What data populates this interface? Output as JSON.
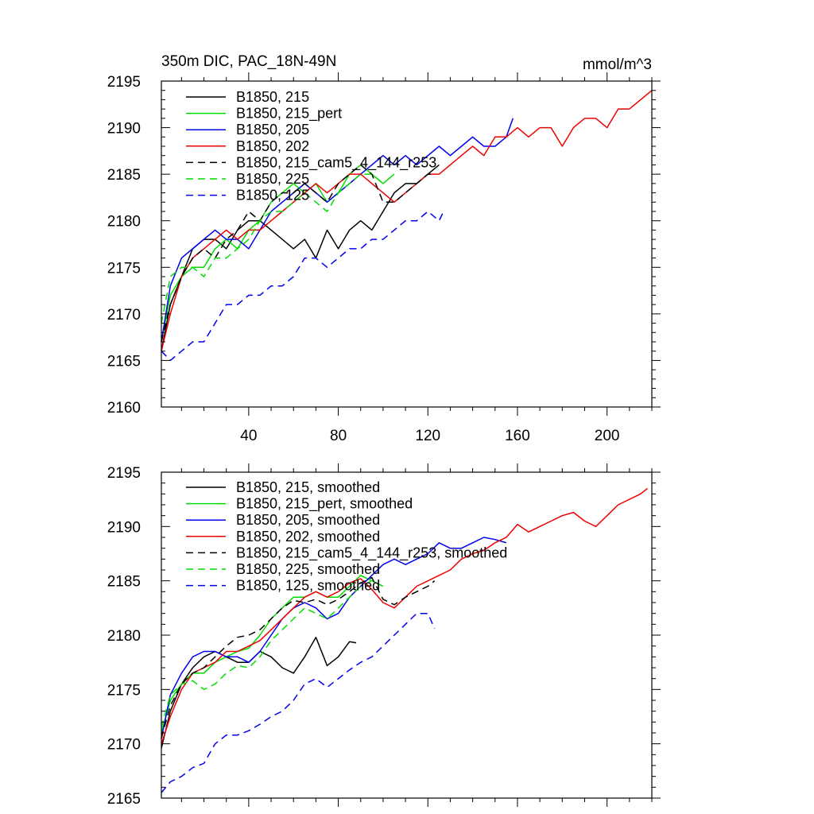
{
  "chart_data": [
    {
      "type": "line",
      "title": "350m DIC, PAC_18N-49N",
      "units": "mmol/m^3",
      "xlim": [
        1,
        220
      ],
      "ylim": [
        2160,
        2195
      ],
      "xticks": [
        40,
        80,
        120,
        160,
        200
      ],
      "xtick_labels": [
        "40",
        "80",
        "120",
        "160",
        "200"
      ],
      "yticks": [
        2160,
        2165,
        2170,
        2175,
        2180,
        2185,
        2190,
        2195
      ],
      "ytick_labels": [
        "2160",
        "2165",
        "2170",
        "2175",
        "2180",
        "2185",
        "2190",
        "2195"
      ],
      "legend_position": "top-left",
      "series": [
        {
          "name": "B1850, 215",
          "color": "#000000",
          "dash": "solid",
          "x": [
            1,
            5,
            10,
            15,
            20,
            25,
            30,
            35,
            40,
            45,
            50,
            55,
            60,
            65,
            70,
            75,
            80,
            85,
            90,
            95,
            100,
            105,
            110,
            115,
            120,
            125
          ],
          "y": [
            2166,
            2171,
            2174,
            2177,
            2178,
            2178,
            2177,
            2179,
            2180,
            2180,
            2179,
            2178,
            2177,
            2178,
            2176,
            2179,
            2177,
            2179,
            2180,
            2179,
            2181,
            2183,
            2184,
            2184,
            2185,
            2186
          ]
        },
        {
          "name": "B1850, 215_pert",
          "color": "#00dd00",
          "dash": "solid",
          "x": [
            1,
            5,
            10,
            15,
            20,
            25,
            30,
            35,
            40,
            45,
            50,
            55,
            60,
            65,
            70,
            75,
            80,
            85,
            90,
            95,
            100,
            105
          ],
          "y": [
            2167,
            2172,
            2174,
            2175,
            2175,
            2177,
            2178,
            2177,
            2179,
            2180,
            2182,
            2183,
            2184,
            2183,
            2184,
            2182,
            2183,
            2185,
            2186,
            2185,
            2184,
            2185
          ]
        },
        {
          "name": "B1850, 205",
          "color": "#0000ee",
          "dash": "solid",
          "x": [
            1,
            5,
            10,
            15,
            20,
            25,
            30,
            35,
            40,
            45,
            50,
            55,
            60,
            65,
            70,
            75,
            80,
            85,
            90,
            95,
            100,
            105,
            110,
            115,
            120,
            125,
            130,
            135,
            140,
            145,
            150,
            155,
            158
          ],
          "y": [
            2167,
            2173,
            2176,
            2177,
            2178,
            2179,
            2178,
            2178,
            2177,
            2179,
            2181,
            2182,
            2183,
            2184,
            2183,
            2182,
            2183,
            2184,
            2185,
            2186,
            2187,
            2186,
            2187,
            2186,
            2187,
            2188,
            2187,
            2188,
            2189,
            2188,
            2188,
            2189,
            2191
          ]
        },
        {
          "name": "B1850, 202",
          "color": "#ee0000",
          "dash": "solid",
          "x": [
            1,
            5,
            10,
            15,
            20,
            25,
            30,
            35,
            40,
            45,
            50,
            55,
            60,
            65,
            70,
            75,
            80,
            85,
            90,
            95,
            100,
            105,
            110,
            115,
            120,
            125,
            130,
            135,
            140,
            145,
            150,
            155,
            160,
            165,
            170,
            175,
            180,
            185,
            190,
            195,
            200,
            205,
            210,
            215,
            220
          ],
          "y": [
            2166,
            2170,
            2174,
            2176,
            2177,
            2178,
            2179,
            2178,
            2179,
            2179,
            2180,
            2181,
            2182,
            2183,
            2184,
            2183,
            2184,
            2185,
            2185,
            2184,
            2183,
            2182,
            2183,
            2184,
            2185,
            2185,
            2186,
            2187,
            2188,
            2187,
            2189,
            2189,
            2190,
            2189,
            2190,
            2190,
            2188,
            2190,
            2191,
            2191,
            2190,
            2192,
            2192,
            2193,
            2194
          ]
        },
        {
          "name": "B1850, 215_cam5_4_144_r253",
          "color": "#000000",
          "dash": "dashed",
          "x": [
            1,
            5,
            10,
            15,
            20,
            25,
            30,
            35,
            40,
            45,
            50,
            55,
            60,
            65,
            70,
            75,
            80,
            85,
            90,
            95,
            100,
            105,
            110,
            115,
            120,
            122
          ],
          "y": [
            2167,
            2171,
            2174,
            2176,
            2177,
            2176,
            2178,
            2179,
            2181,
            2180,
            2182,
            2183,
            2183,
            2184,
            2183,
            2182,
            2184,
            2185,
            2186,
            2185,
            2182,
            2182,
            2183,
            2184,
            2185,
            2185
          ]
        },
        {
          "name": "B1850, 225",
          "color": "#00dd00",
          "dash": "dashed",
          "x": [
            1,
            5,
            10,
            15,
            20,
            25,
            30,
            35,
            40,
            45,
            50,
            55,
            60,
            65,
            70,
            75,
            80,
            85,
            90,
            95,
            100
          ],
          "y": [
            2169,
            2174,
            2175,
            2175,
            2174,
            2176,
            2176,
            2177,
            2178,
            2180,
            2181,
            2181,
            2182,
            2183,
            2182,
            2181,
            2183,
            2184,
            2185,
            2185,
            2184
          ]
        },
        {
          "name": "B1850, 125",
          "color": "#0000ee",
          "dash": "dashed",
          "x": [
            1,
            5,
            10,
            15,
            20,
            25,
            30,
            35,
            40,
            45,
            50,
            55,
            60,
            65,
            70,
            75,
            80,
            85,
            90,
            95,
            100,
            105,
            110,
            115,
            120,
            125,
            127
          ],
          "y": [
            2166,
            2165,
            2166,
            2167,
            2167,
            2169,
            2171,
            2171,
            2172,
            2172,
            2173,
            2173,
            2174,
            2176,
            2176,
            2175,
            2176,
            2177,
            2177,
            2178,
            2178,
            2179,
            2180,
            2180,
            2181,
            2180,
            2181
          ]
        }
      ]
    },
    {
      "type": "line",
      "title": "",
      "xlim": [
        1,
        220
      ],
      "ylim": [
        2165,
        2195
      ],
      "xticks": [
        40,
        80,
        120,
        160,
        200
      ],
      "yticks": [
        2165,
        2170,
        2175,
        2180,
        2185,
        2190,
        2195
      ],
      "ytick_labels": [
        "2165",
        "2170",
        "2175",
        "2180",
        "2185",
        "2190",
        "2195"
      ],
      "legend_position": "top-left",
      "series": [
        {
          "name": "B1850, 215, smoothed",
          "color": "#000000",
          "dash": "solid",
          "x": [
            1,
            5,
            10,
            15,
            20,
            25,
            30,
            35,
            40,
            45,
            50,
            55,
            60,
            65,
            70,
            75,
            80,
            85,
            88
          ],
          "y": [
            2169.6,
            2173,
            2175.5,
            2177,
            2178,
            2178.5,
            2178,
            2177.5,
            2177.5,
            2178.5,
            2178,
            2177,
            2176.5,
            2178,
            2179.8,
            2177.2,
            2178,
            2179.4,
            2179.3
          ]
        },
        {
          "name": "B1850, 215_pert, smoothed",
          "color": "#00dd00",
          "dash": "solid",
          "x": [
            1,
            5,
            10,
            15,
            20,
            25,
            30,
            35,
            40,
            45,
            50,
            55,
            60,
            65,
            70,
            75,
            80,
            85,
            90,
            95,
            100
          ],
          "y": [
            2171,
            2174,
            2175.5,
            2176.5,
            2176.5,
            2177.5,
            2178,
            2178.5,
            2178.8,
            2180,
            2181.5,
            2182.5,
            2183.5,
            2183.5,
            2184,
            2183.5,
            2183.5,
            2184.5,
            2185.5,
            2185,
            2184.5
          ]
        },
        {
          "name": "B1850, 205, smoothed",
          "color": "#0000ee",
          "dash": "solid",
          "x": [
            1,
            5,
            10,
            15,
            20,
            25,
            30,
            35,
            40,
            45,
            50,
            55,
            60,
            65,
            70,
            75,
            80,
            85,
            90,
            95,
            100,
            105,
            110,
            115,
            120,
            125,
            130,
            135,
            140,
            145,
            150,
            155
          ],
          "y": [
            2170.5,
            2174.5,
            2176.5,
            2178,
            2178.5,
            2178.5,
            2178,
            2178,
            2177.5,
            2178.5,
            2180,
            2181.5,
            2182.5,
            2183,
            2182.5,
            2181.5,
            2182,
            2183.5,
            2184.5,
            2185.5,
            2186.5,
            2187,
            2186.5,
            2187,
            2187.5,
            2188.5,
            2188,
            2188,
            2188.5,
            2189,
            2188.8,
            2188.5
          ]
        },
        {
          "name": "B1850, 202, smoothed",
          "color": "#ee0000",
          "dash": "solid",
          "x": [
            1,
            5,
            10,
            15,
            20,
            25,
            30,
            35,
            40,
            45,
            50,
            55,
            60,
            65,
            70,
            75,
            80,
            85,
            90,
            95,
            100,
            105,
            110,
            115,
            120,
            125,
            130,
            135,
            140,
            145,
            150,
            155,
            160,
            165,
            170,
            175,
            180,
            185,
            190,
            195,
            200,
            205,
            210,
            215,
            218
          ],
          "y": [
            2170,
            2172.5,
            2175,
            2176.5,
            2177,
            2177.5,
            2178.5,
            2178.5,
            2179,
            2179.5,
            2180.5,
            2181.5,
            2182.5,
            2183.5,
            2184,
            2183.5,
            2184,
            2184.8,
            2185.2,
            2184.2,
            2183,
            2182.5,
            2183.5,
            2184.5,
            2185,
            2185.5,
            2186,
            2187,
            2187.5,
            2187.8,
            2188.5,
            2189,
            2190.2,
            2189.5,
            2190,
            2190.5,
            2191,
            2191.3,
            2190.5,
            2190,
            2191,
            2192,
            2192.5,
            2193,
            2193.5
          ]
        },
        {
          "name": "B1850, 215_cam5_4_144_r253, smoothed",
          "color": "#000000",
          "dash": "dashed",
          "x": [
            1,
            5,
            10,
            15,
            20,
            25,
            30,
            35,
            40,
            45,
            50,
            55,
            60,
            65,
            70,
            75,
            80,
            85,
            90,
            95,
            100,
            105,
            110,
            115,
            120,
            123
          ],
          "y": [
            2170.5,
            2173.5,
            2175.5,
            2176.5,
            2177,
            2178,
            2179,
            2179.8,
            2180,
            2180.5,
            2181.5,
            2182.5,
            2183.2,
            2183,
            2183.3,
            2182.8,
            2183.3,
            2184,
            2184.8,
            2185.3,
            2183.3,
            2182.8,
            2183.5,
            2184,
            2184.5,
            2185
          ]
        },
        {
          "name": "B1850, 225, smoothed",
          "color": "#00dd00",
          "dash": "dashed",
          "x": [
            1,
            5,
            10,
            15,
            20,
            25,
            30,
            35,
            40,
            45,
            50,
            55,
            60,
            65,
            70,
            75,
            80,
            85,
            90,
            95,
            100
          ],
          "y": [
            2171.5,
            2174.5,
            2175.5,
            2175.8,
            2175,
            2175.5,
            2176.5,
            2177.2,
            2177,
            2178,
            2179.5,
            2180.5,
            2181.5,
            2182.5,
            2182,
            2181.5,
            2182.5,
            2183.5,
            2184.5,
            2185,
            2184.5
          ]
        },
        {
          "name": "B1850, 125, smoothed",
          "color": "#0000ee",
          "dash": "dashed",
          "x": [
            1,
            5,
            10,
            15,
            20,
            25,
            30,
            35,
            40,
            45,
            50,
            55,
            60,
            65,
            70,
            75,
            80,
            85,
            90,
            95,
            100,
            105,
            110,
            115,
            120,
            123
          ],
          "y": [
            2165.5,
            2166.5,
            2167,
            2167.8,
            2168.2,
            2170,
            2170.8,
            2170.8,
            2171.2,
            2171.8,
            2172.5,
            2173,
            2174,
            2175.5,
            2176,
            2175.2,
            2176,
            2176.8,
            2177.5,
            2178,
            2179,
            2180,
            2181,
            2182,
            2182,
            2180.6
          ]
        }
      ]
    }
  ]
}
